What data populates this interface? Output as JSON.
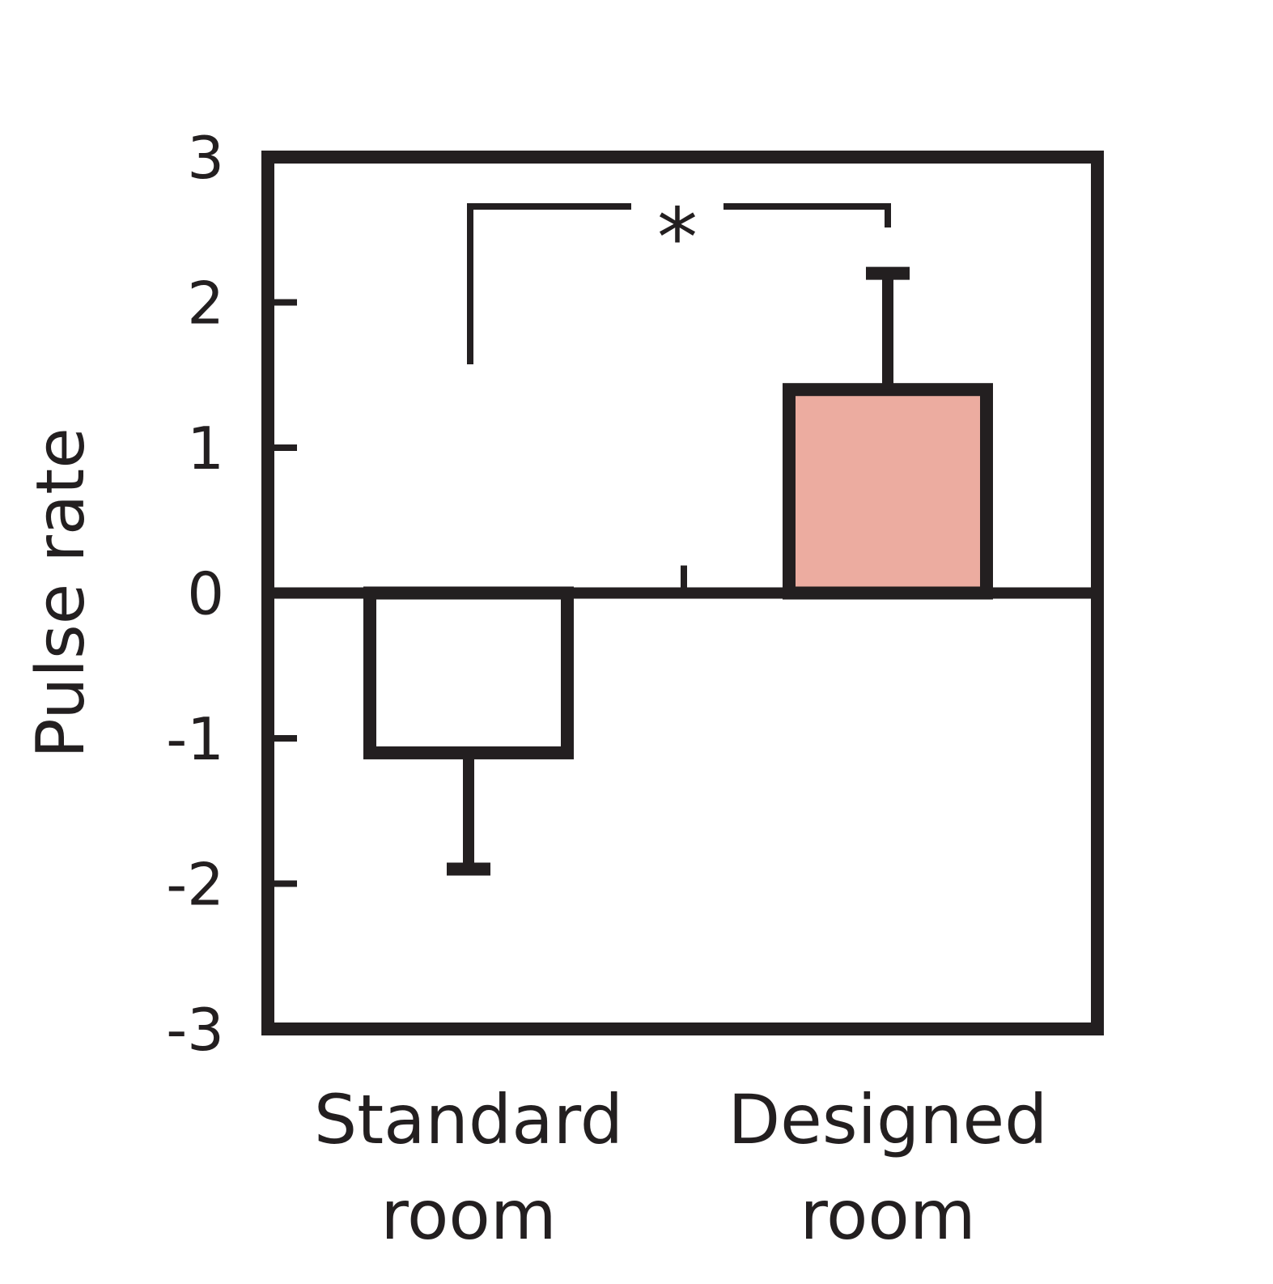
{
  "chart_data": {
    "type": "bar",
    "title": "",
    "xlabel": "",
    "ylabel": "Pulse rate",
    "ylim": [
      -3,
      3
    ],
    "yticks": [
      3,
      2,
      1,
      0,
      -1,
      -2,
      -3
    ],
    "grid": false,
    "categories": [
      {
        "lines": [
          "Standard",
          "room"
        ]
      },
      {
        "lines": [
          "Designed",
          "room"
        ]
      }
    ],
    "values": [
      -1.1,
      1.4
    ],
    "error": [
      0.8,
      0.8
    ],
    "bar_colors": [
      "#ffffff",
      "#ecaca0"
    ],
    "significance": {
      "between": [
        0,
        1
      ],
      "label": "*"
    }
  },
  "colors": {
    "ink": "#231f20",
    "designed_fill": "#ecaca0",
    "standard_fill": "#ffffff"
  }
}
